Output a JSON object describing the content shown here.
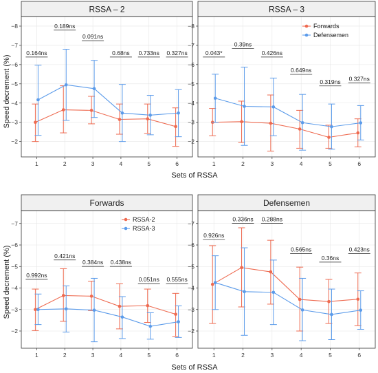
{
  "colors": {
    "red": "#EE6A50",
    "blue": "#5B9BEA",
    "strip_bg": "#F0F0F0",
    "frame": "#333333",
    "grid": "#E5E5E5"
  },
  "figure": {
    "ylabel": "Speed decrement (%)",
    "xlabel": "Sets of RSSA"
  },
  "legends": {
    "top": [
      {
        "label": "Forwards",
        "color_key": "red"
      },
      {
        "label": "Defensemen",
        "color_key": "blue"
      }
    ],
    "bottom": [
      {
        "label": "RSSA-2",
        "color_key": "red"
      },
      {
        "label": "RSSA-3",
        "color_key": "blue"
      }
    ]
  },
  "chart_data": [
    {
      "type": "line",
      "title": "RSSA – 2",
      "x": [
        1,
        2,
        3,
        4,
        5,
        6
      ],
      "ylim": [
        -8.5,
        -1.2
      ],
      "y_inverted": true,
      "yticks": [
        -8,
        -7,
        -6,
        -5,
        -4,
        -3,
        -2
      ],
      "grid": true,
      "legend": "none",
      "series": [
        {
          "name": "Forwards",
          "color_key": "red",
          "values": [
            -3.0,
            -3.65,
            -3.62,
            -3.15,
            -3.18,
            -2.78
          ],
          "err_low": [
            -2.0,
            -2.45,
            -2.92,
            -2.38,
            -2.42,
            -1.75
          ],
          "err_high": [
            -3.95,
            -4.9,
            -4.35,
            -3.95,
            -3.95,
            -3.75
          ]
        },
        {
          "name": "Defensemen",
          "color_key": "blue",
          "values": [
            -4.17,
            -4.95,
            -4.75,
            -3.48,
            -3.37,
            -3.48
          ],
          "err_low": [
            -2.32,
            -3.1,
            -3.25,
            -2.0,
            -2.35,
            -2.25
          ],
          "err_high": [
            -5.97,
            -6.8,
            -6.22,
            -4.97,
            -4.4,
            -4.7
          ]
        }
      ],
      "annotations": [
        {
          "x": 1,
          "text": "0.164ns",
          "y": -6.5
        },
        {
          "x": 2,
          "text": "0.189ns",
          "y": -7.9
        },
        {
          "x": 3,
          "text": "0.091ns",
          "y": -7.35
        },
        {
          "x": 4,
          "text": "0.68ns",
          "y": -6.5
        },
        {
          "x": 5,
          "text": "0.733ns",
          "y": -6.5
        },
        {
          "x": 6,
          "text": "0.327ns",
          "y": -6.5
        }
      ]
    },
    {
      "type": "line",
      "title": "RSSA – 3",
      "x": [
        1,
        2,
        3,
        4,
        5,
        6
      ],
      "ylim": [
        -8.5,
        -1.2
      ],
      "y_inverted": true,
      "yticks": [
        -8,
        -7,
        -6,
        -5,
        -4,
        -3,
        -2
      ],
      "grid": true,
      "legend": "top-right",
      "legend_key": "top",
      "series": [
        {
          "name": "Forwards",
          "color_key": "red",
          "values": [
            -3.0,
            -3.03,
            -2.95,
            -2.65,
            -2.22,
            -2.45
          ],
          "err_low": [
            -2.3,
            -1.95,
            -1.5,
            -1.65,
            -1.65,
            -1.72
          ],
          "err_high": [
            -3.72,
            -4.1,
            -4.42,
            -3.62,
            -2.85,
            -3.18
          ]
        },
        {
          "name": "Defensemen",
          "color_key": "blue",
          "values": [
            -4.25,
            -3.83,
            -3.8,
            -2.98,
            -2.77,
            -2.97
          ],
          "err_low": [
            -3.0,
            -1.8,
            -2.3,
            -1.55,
            -1.6,
            -2.08
          ],
          "err_high": [
            -5.5,
            -5.87,
            -5.3,
            -4.45,
            -3.95,
            -3.87
          ]
        }
      ],
      "annotations": [
        {
          "x": 1,
          "text": "0.043*",
          "y": -6.5
        },
        {
          "x": 2,
          "text": "0.39ns",
          "y": -6.95
        },
        {
          "x": 3,
          "text": "0.426ns",
          "y": -6.5
        },
        {
          "x": 4,
          "text": "0.649ns",
          "y": -5.6
        },
        {
          "x": 5,
          "text": "0.319ns",
          "y": -5.0
        },
        {
          "x": 6,
          "text": "0.327ns",
          "y": -5.15
        }
      ]
    },
    {
      "type": "line",
      "title": "Forwards",
      "x": [
        1,
        2,
        3,
        4,
        5,
        6
      ],
      "ylim": [
        -7.6,
        -1.2
      ],
      "y_inverted": true,
      "yticks": [
        -7,
        -6,
        -5,
        -4,
        -3,
        -2
      ],
      "grid": true,
      "legend": "top-left",
      "legend_key": "bottom",
      "series": [
        {
          "name": "RSSA-2",
          "color_key": "red",
          "values": [
            -3.0,
            -3.65,
            -3.62,
            -3.15,
            -3.18,
            -2.78
          ],
          "err_low": [
            -2.02,
            -2.45,
            -2.95,
            -2.1,
            -2.4,
            -1.75
          ],
          "err_high": [
            -3.95,
            -4.9,
            -4.32,
            -4.2,
            -3.95,
            -3.75
          ]
        },
        {
          "name": "RSSA-3",
          "color_key": "blue",
          "values": [
            -3.0,
            -3.03,
            -2.97,
            -2.65,
            -2.22,
            -2.43
          ],
          "err_low": [
            -2.3,
            -1.95,
            -1.5,
            -1.65,
            -1.62,
            -1.7
          ],
          "err_high": [
            -3.72,
            -4.1,
            -4.45,
            -3.6,
            -2.85,
            -3.17
          ]
        }
      ],
      "annotations": [
        {
          "x": 1,
          "text": "0.992ns",
          "y": -4.5
        },
        {
          "x": 2,
          "text": "0.421ns",
          "y": -5.4
        },
        {
          "x": 3,
          "text": "0.384ns",
          "y": -5.1
        },
        {
          "x": 4,
          "text": "0.438ns",
          "y": -5.1
        },
        {
          "x": 5,
          "text": "0.051ns",
          "y": -4.3
        },
        {
          "x": 6,
          "text": "0.555ns",
          "y": -4.3
        }
      ]
    },
    {
      "type": "line",
      "title": "Defensemen",
      "x": [
        1,
        2,
        3,
        4,
        5,
        6
      ],
      "ylim": [
        -7.6,
        -1.2
      ],
      "y_inverted": true,
      "yticks": [
        -7,
        -6,
        -5,
        -4,
        -3,
        -2
      ],
      "grid": true,
      "legend": "none",
      "series": [
        {
          "name": "RSSA-2",
          "color_key": "red",
          "values": [
            -4.17,
            -4.95,
            -4.75,
            -3.47,
            -3.37,
            -3.48
          ],
          "err_low": [
            -2.35,
            -3.12,
            -3.25,
            -2.0,
            -2.35,
            -2.25
          ],
          "err_high": [
            -5.97,
            -6.8,
            -6.22,
            -4.97,
            -4.4,
            -4.7
          ]
        },
        {
          "name": "RSSA-3",
          "color_key": "blue",
          "values": [
            -4.25,
            -3.83,
            -3.8,
            -2.98,
            -2.77,
            -2.97
          ],
          "err_low": [
            -3.0,
            -1.8,
            -2.3,
            -1.55,
            -1.6,
            -2.08
          ],
          "err_high": [
            -5.5,
            -5.87,
            -5.3,
            -4.45,
            -3.95,
            -3.87
          ]
        }
      ],
      "annotations": [
        {
          "x": 1,
          "text": "0.926ns",
          "y": -6.35
        },
        {
          "x": 2,
          "text": "0.336ns",
          "y": -7.1
        },
        {
          "x": 3,
          "text": "0.288ns",
          "y": -7.1
        },
        {
          "x": 4,
          "text": "0.565ns",
          "y": -5.7
        },
        {
          "x": 5,
          "text": "0.36ns",
          "y": -5.3
        },
        {
          "x": 6,
          "text": "0.423ns",
          "y": -5.7
        }
      ]
    }
  ]
}
